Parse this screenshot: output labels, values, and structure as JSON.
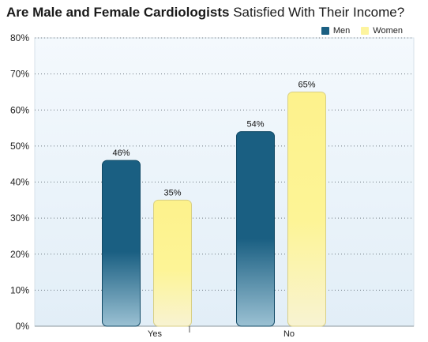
{
  "title": {
    "bold_part": "Are Male and Female Cardiologists",
    "normal_part": "Satisfied With Their Income?"
  },
  "chart_data": {
    "type": "bar",
    "categories": [
      "Yes",
      "No"
    ],
    "series": [
      {
        "name": "Men",
        "values": [
          46,
          54
        ],
        "color": "#1a5f82"
      },
      {
        "name": "Women",
        "values": [
          35,
          65
        ],
        "color": "#fdf49e"
      }
    ],
    "value_labels": [
      [
        "46%",
        "54%"
      ],
      [
        "35%",
        "65%"
      ]
    ],
    "ylim": [
      0,
      80
    ],
    "yticks": [
      "0%",
      "10%",
      "20%",
      "30%",
      "40%",
      "50%",
      "60%",
      "70%",
      "80%"
    ],
    "grid": true,
    "legend_position": "top-right"
  }
}
